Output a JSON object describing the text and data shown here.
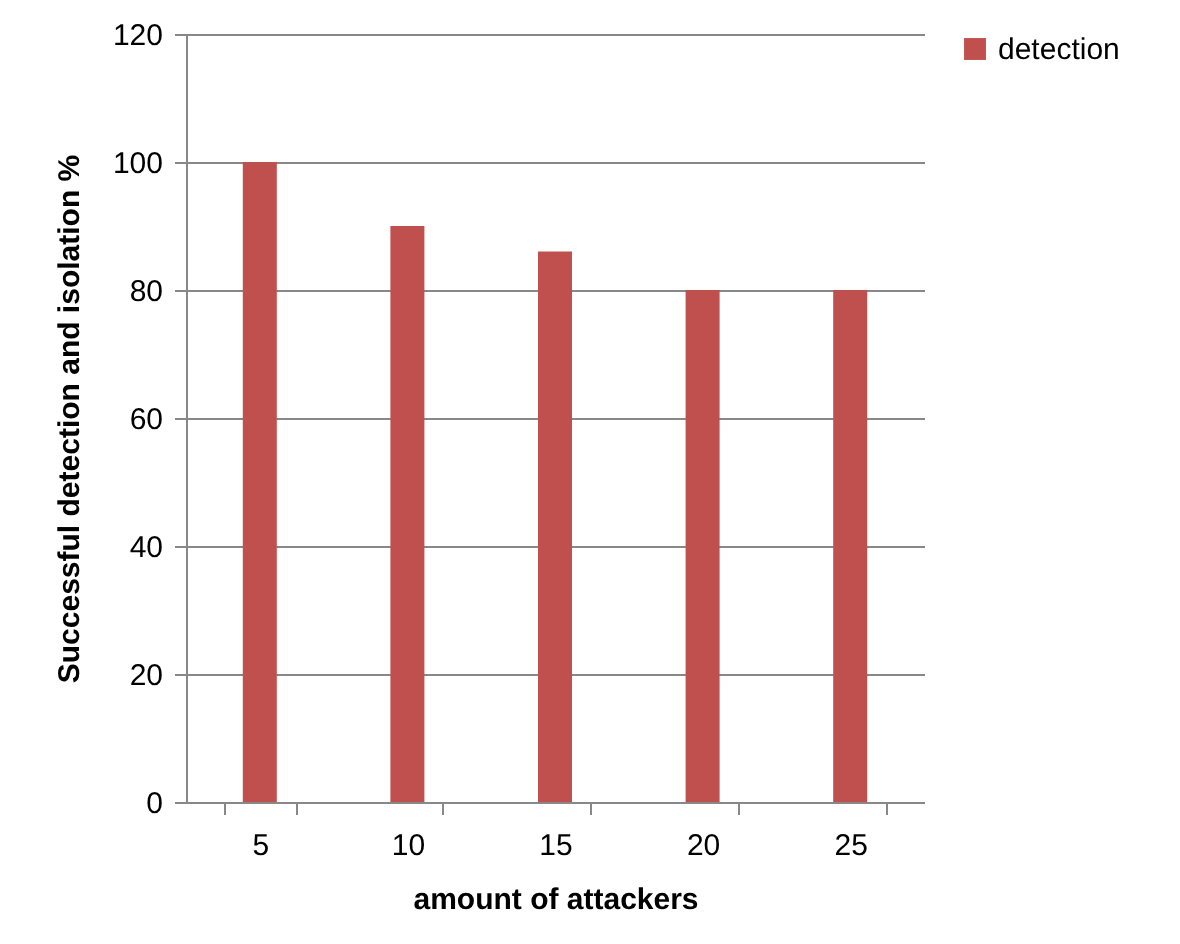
{
  "chart_data": {
    "type": "bar",
    "xlabel": "amount of attackers",
    "ylabel": "Successful detection and isolation %",
    "categories": [
      "5",
      "10",
      "15",
      "20",
      "25"
    ],
    "series": [
      {
        "name": "detection",
        "color": "#c0504d",
        "values": [
          100,
          90,
          86,
          80,
          80
        ]
      }
    ],
    "ylim": [
      0,
      120
    ],
    "yticks": [
      0,
      20,
      40,
      60,
      80,
      100,
      120
    ],
    "grid": "y",
    "legend": "right"
  }
}
